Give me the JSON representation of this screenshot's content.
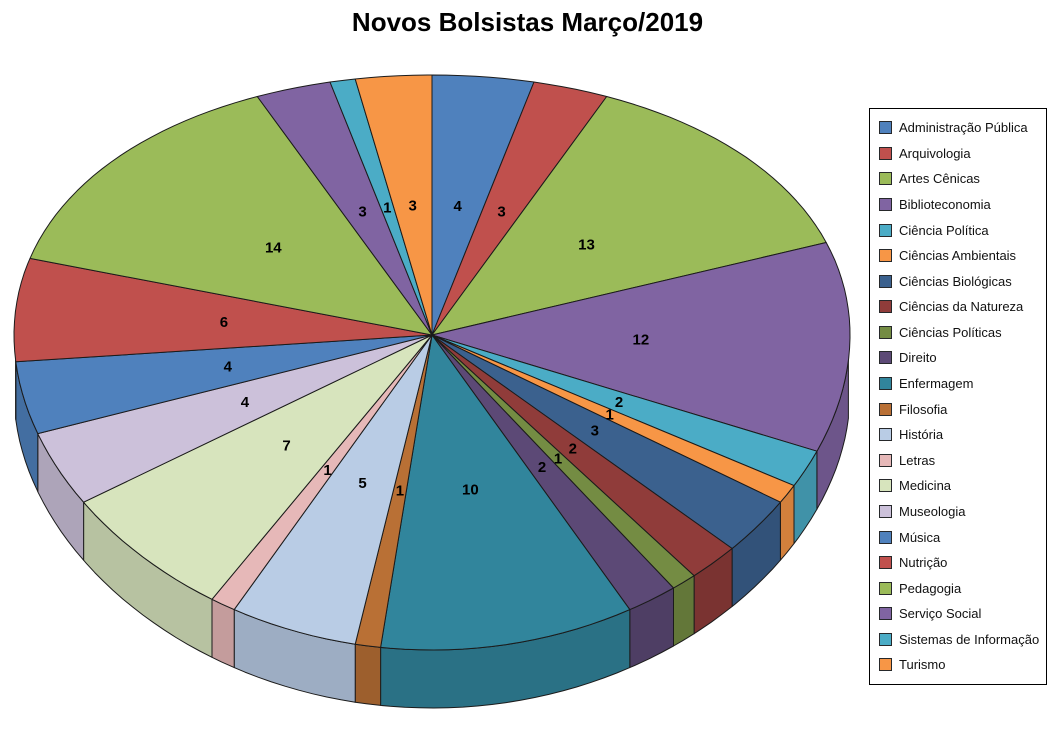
{
  "chart_data": {
    "type": "pie",
    "title": "Novos Bolsistas Março/2019",
    "style": "3d",
    "start_angle_deg": 0,
    "direction": "clockwise",
    "data_labels": "value",
    "legend_position": "right",
    "total": 102,
    "slices": [
      {
        "label": "Administração Pública",
        "value": 4,
        "color": "#4F81BD"
      },
      {
        "label": "Arquivologia",
        "value": 3,
        "color": "#C0504D"
      },
      {
        "label": "Artes Cênicas",
        "value": 13,
        "color": "#9BBB59"
      },
      {
        "label": "Biblioteconomia",
        "value": 12,
        "color": "#8064A2"
      },
      {
        "label": "Ciência Política",
        "value": 2,
        "color": "#4BACC6"
      },
      {
        "label": "Ciências Ambientais",
        "value": 1,
        "color": "#F79646"
      },
      {
        "label": "Ciências Biológicas",
        "value": 3,
        "color": "#3B618E"
      },
      {
        "label": "Ciências da Natureza",
        "value": 2,
        "color": "#903C3A"
      },
      {
        "label": "Ciências Políticas",
        "value": 1,
        "color": "#748C43"
      },
      {
        "label": "Direito",
        "value": 2,
        "color": "#5C4976"
      },
      {
        "label": "Enfermagem",
        "value": 10,
        "color": "#31859C"
      },
      {
        "label": "Filosofia",
        "value": 1,
        "color": "#B97035"
      },
      {
        "label": "História",
        "value": 5,
        "color": "#B9CCE5"
      },
      {
        "label": "Letras",
        "value": 1,
        "color": "#E6B8B8"
      },
      {
        "label": "Medicina",
        "value": 7,
        "color": "#D7E4BD"
      },
      {
        "label": "Museologia",
        "value": 4,
        "color": "#CCC1DA"
      },
      {
        "label": "Música",
        "value": 4,
        "color": "#4F81BD"
      },
      {
        "label": "Nutrição",
        "value": 6,
        "color": "#C0504D"
      },
      {
        "label": "Pedagogia",
        "value": 14,
        "color": "#9BBB59"
      },
      {
        "label": "Serviço Social",
        "value": 3,
        "color": "#8064A2"
      },
      {
        "label": "Sistemas de Informação",
        "value": 1,
        "color": "#4BACC6"
      },
      {
        "label": "Turismo",
        "value": 3,
        "color": "#F79646"
      }
    ]
  },
  "colors": {
    "background": "#FFFFFF",
    "slice_outline": "#1B1B1B",
    "data_label_text": "#000000",
    "legend_border": "#000000",
    "legend_text": "#111111"
  }
}
